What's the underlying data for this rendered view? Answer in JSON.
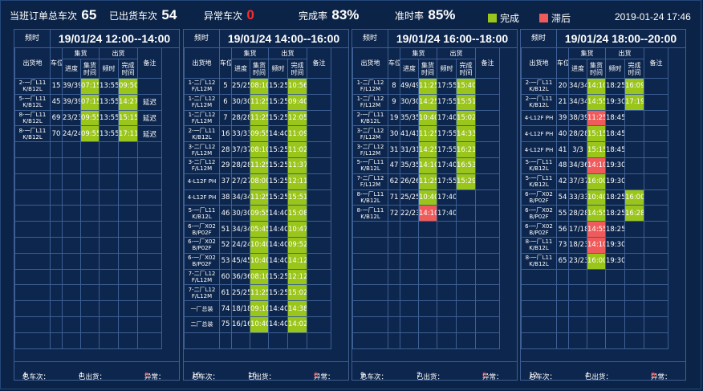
{
  "header": {
    "total_label": "当班订单总车次",
    "total_value": "65",
    "shipped_label": "已出货车次",
    "shipped_value": "54",
    "abnormal_label": "异常车次",
    "abnormal_value": "0",
    "completion_label": "完成率",
    "completion_value": "83%",
    "ontime_label": "准时率",
    "ontime_value": "85%",
    "legend_done": "完成",
    "legend_late": "滞后",
    "datetime": "2019-01-24  17:46"
  },
  "colors": {
    "done": "#9ac51b",
    "late": "#ef5a5a",
    "abnormal": "#ff2a2a"
  },
  "columns": {
    "slot_label": "频时",
    "dest": "出货地",
    "bay": "车位",
    "collect": "集货",
    "ship": "出货",
    "progress": "进度",
    "collect_time": "集货时间",
    "plan": "频时",
    "done_time": "完成时间",
    "remark": "备注"
  },
  "footer_labels": {
    "total": "总车次：",
    "shipped": "已出货：",
    "abnormal": "异常："
  },
  "panels": [
    {
      "slot": "19/01/24 12:00--14:00",
      "rows": [
        {
          "dest": "2-一厂L11 K/B12L",
          "bay": "15",
          "progress": "39/39",
          "ct": "07:15",
          "ct_s": "g",
          "plan": "13:55",
          "done": "09:50",
          "done_s": "g",
          "remark": ""
        },
        {
          "dest": "5-一厂L11 K/B12L",
          "bay": "45",
          "progress": "39/39",
          "ct": "07:15",
          "ct_s": "g",
          "plan": "13:55",
          "done": "14:27",
          "done_s": "g",
          "remark": "延迟"
        },
        {
          "dest": "8-一厂L11 K/B12L",
          "bay": "69",
          "progress": "23/23",
          "ct": "09:55",
          "ct_s": "g",
          "plan": "13:55",
          "done": "15:15",
          "done_s": "g",
          "remark": "延迟"
        },
        {
          "dest": "8-一厂L11 K/B12L",
          "bay": "70",
          "progress": "24/24",
          "ct": "09:55",
          "ct_s": "g",
          "plan": "13:55",
          "done": "17:11",
          "done_s": "g",
          "remark": "延迟"
        }
      ],
      "footer": {
        "total": "4",
        "shipped": "4",
        "abnormal": "0"
      }
    },
    {
      "slot": "19/01/24 14:00--16:00",
      "rows": [
        {
          "dest": "1-二厂L12 F/L12M",
          "bay": "5",
          "progress": "25/25",
          "ct": "08:10",
          "ct_s": "g",
          "plan": "15:25",
          "done": "10:56",
          "done_s": "g",
          "remark": ""
        },
        {
          "dest": "1-二厂L12 F/L12M",
          "bay": "6",
          "progress": "30/30",
          "ct": "11:25",
          "ct_s": "g",
          "plan": "15:25",
          "done": "09:40",
          "done_s": "g",
          "remark": ""
        },
        {
          "dest": "1-二厂L12 F/L12M",
          "bay": "7",
          "progress": "28/28",
          "ct": "11:25",
          "ct_s": "g",
          "plan": "15:25",
          "done": "12:05",
          "done_s": "g",
          "remark": ""
        },
        {
          "dest": "2-一厂L11 K/B12L",
          "bay": "16",
          "progress": "33/33",
          "ct": "09:55",
          "ct_s": "g",
          "plan": "14:40",
          "done": "11:09",
          "done_s": "g",
          "remark": ""
        },
        {
          "dest": "3-二厂L12 F/L12M",
          "bay": "28",
          "progress": "37/37",
          "ct": "08:10",
          "ct_s": "g",
          "plan": "15:25",
          "done": "11:02",
          "done_s": "g",
          "remark": ""
        },
        {
          "dest": "3-二厂L12 F/L12M",
          "bay": "29",
          "progress": "28/28",
          "ct": "11:25",
          "ct_s": "g",
          "plan": "15:25",
          "done": "11:37",
          "done_s": "g",
          "remark": ""
        },
        {
          "dest": "4-L12F PH",
          "bay": "37",
          "progress": "27/27",
          "ct": "08:00",
          "ct_s": "g",
          "plan": "15:25",
          "done": "12:11",
          "done_s": "g",
          "remark": ""
        },
        {
          "dest": "4-L12F PH",
          "bay": "38",
          "progress": "34/34",
          "ct": "11:25",
          "ct_s": "g",
          "plan": "15:25",
          "done": "15:51",
          "done_s": "g",
          "remark": ""
        },
        {
          "dest": "5-一厂L11 K/B12L",
          "bay": "46",
          "progress": "30/30",
          "ct": "09:55",
          "ct_s": "g",
          "plan": "14:40",
          "done": "15:08",
          "done_s": "g",
          "remark": ""
        },
        {
          "dest": "6-一厂X02 B/P02F",
          "bay": "51",
          "progress": "34/34",
          "ct": "05:45",
          "ct_s": "g",
          "plan": "14:40",
          "done": "10:47",
          "done_s": "g",
          "remark": ""
        },
        {
          "dest": "6-一厂X02 B/P02F",
          "bay": "52",
          "progress": "24/24",
          "ct": "10:40",
          "ct_s": "g",
          "plan": "14:40",
          "done": "09:52",
          "done_s": "g",
          "remark": ""
        },
        {
          "dest": "6-一厂X02 B/P02F",
          "bay": "53",
          "progress": "45/45",
          "ct": "10:40",
          "ct_s": "g",
          "plan": "14:40",
          "done": "14:12",
          "done_s": "g",
          "remark": ""
        },
        {
          "dest": "7-二厂L12 F/L12M",
          "bay": "60",
          "progress": "36/36",
          "ct": "08:10",
          "ct_s": "g",
          "plan": "15:25",
          "done": "12:12",
          "done_s": "g",
          "remark": ""
        },
        {
          "dest": "7-二厂L12 F/L12M",
          "bay": "61",
          "progress": "25/25",
          "ct": "11:25",
          "ct_s": "g",
          "plan": "15:25",
          "done": "15:02",
          "done_s": "g",
          "remark": ""
        },
        {
          "dest": "一厂总装",
          "bay": "74",
          "progress": "18/18",
          "ct": "09:10",
          "ct_s": "g",
          "plan": "14:40",
          "done": "14:38",
          "done_s": "g",
          "remark": ""
        },
        {
          "dest": "二厂总装",
          "bay": "75",
          "progress": "16/16",
          "ct": "10:40",
          "ct_s": "g",
          "plan": "14:40",
          "done": "14:02",
          "done_s": "g",
          "remark": ""
        }
      ],
      "footer": {
        "total": "16",
        "shipped": "16",
        "abnormal": "0"
      }
    },
    {
      "slot": "19/01/24 16:00--18:00",
      "rows": [
        {
          "dest": "1-二厂L12 F/L12M",
          "bay": "8",
          "progress": "49/49",
          "ct": "11:25",
          "ct_s": "g",
          "plan": "17:55",
          "done": "15:40",
          "done_s": "g",
          "remark": ""
        },
        {
          "dest": "1-二厂L12 F/L12M",
          "bay": "9",
          "progress": "30/30",
          "ct": "14:25",
          "ct_s": "g",
          "plan": "17:55",
          "done": "15:51",
          "done_s": "g",
          "remark": ""
        },
        {
          "dest": "2-一厂L11 K/B12L",
          "bay": "19",
          "progress": "35/35",
          "ct": "10:40",
          "ct_s": "g",
          "plan": "17:40",
          "done": "15:02",
          "done_s": "g",
          "remark": ""
        },
        {
          "dest": "3-二厂L12 F/L12M",
          "bay": "30",
          "progress": "41/41",
          "ct": "11:25",
          "ct_s": "g",
          "plan": "17:55",
          "done": "14:33",
          "done_s": "g",
          "remark": ""
        },
        {
          "dest": "3-二厂L12 F/L12M",
          "bay": "31",
          "progress": "31/31",
          "ct": "14:25",
          "ct_s": "g",
          "plan": "17:55",
          "done": "16:21",
          "done_s": "g",
          "remark": ""
        },
        {
          "dest": "5-一厂L11 K/B12L",
          "bay": "47",
          "progress": "35/35",
          "ct": "14:10",
          "ct_s": "g",
          "plan": "17:40",
          "done": "16:53",
          "done_s": "g",
          "remark": ""
        },
        {
          "dest": "7-二厂L12 F/L12M",
          "bay": "62",
          "progress": "26/26",
          "ct": "11:25",
          "ct_s": "g",
          "plan": "17:55",
          "done": "15:29",
          "done_s": "g",
          "remark": ""
        },
        {
          "dest": "8-一厂L11 K/B12L",
          "bay": "71",
          "progress": "25/25",
          "ct": "10:40",
          "ct_s": "g",
          "plan": "17:40",
          "done": "",
          "done_s": "",
          "remark": ""
        },
        {
          "dest": "8-一厂L11 K/B12L",
          "bay": "72",
          "progress": "22/23",
          "ct": "14:10",
          "ct_s": "r",
          "plan": "17:40",
          "done": "",
          "done_s": "",
          "remark": ""
        }
      ],
      "footer": {
        "total": "9",
        "shipped": "7",
        "abnormal": "0"
      }
    },
    {
      "slot": "19/01/24 18:00--20:00",
      "rows": [
        {
          "dest": "2-一厂L11 K/B12L",
          "bay": "20",
          "progress": "34/34",
          "ct": "14:10",
          "ct_s": "g",
          "plan": "18:25",
          "done": "16:09",
          "done_s": "g",
          "remark": ""
        },
        {
          "dest": "2-一厂L11 K/B12L",
          "bay": "21",
          "progress": "34/34",
          "ct": "14:55",
          "ct_s": "g",
          "plan": "19:30",
          "done": "17:19",
          "done_s": "g",
          "remark": ""
        },
        {
          "dest": "4-L12F PH",
          "bay": "39",
          "progress": "38/39",
          "ct": "11:25",
          "ct_s": "r",
          "plan": "18:45",
          "done": "",
          "done_s": "",
          "remark": ""
        },
        {
          "dest": "4-L12F PH",
          "bay": "40",
          "progress": "28/28",
          "ct": "15:15",
          "ct_s": "g",
          "plan": "18:45",
          "done": "",
          "done_s": "",
          "remark": ""
        },
        {
          "dest": "4-L12F PH",
          "bay": "41",
          "progress": "3/3",
          "ct": "15:15",
          "ct_s": "g",
          "plan": "18:45",
          "done": "",
          "done_s": "",
          "remark": ""
        },
        {
          "dest": "5-一厂L11 K/B12L",
          "bay": "48",
          "progress": "34/36",
          "ct": "14:10",
          "ct_s": "r",
          "plan": "19:30",
          "done": "",
          "done_s": "",
          "remark": ""
        },
        {
          "dest": "5-一厂L11 K/B12L",
          "bay": "42",
          "progress": "37/37",
          "ct": "16:00",
          "ct_s": "g",
          "plan": "19:30",
          "done": "",
          "done_s": "",
          "remark": ""
        },
        {
          "dest": "6-一厂X02 B/P02F",
          "bay": "54",
          "progress": "33/33",
          "ct": "10:40",
          "ct_s": "g",
          "plan": "18:25",
          "done": "16:00",
          "done_s": "g",
          "remark": ""
        },
        {
          "dest": "6-一厂X02 B/P02F",
          "bay": "55",
          "progress": "28/28",
          "ct": "14:55",
          "ct_s": "g",
          "plan": "18:25",
          "done": "16:28",
          "done_s": "g",
          "remark": ""
        },
        {
          "dest": "6-一厂X02 B/P02F",
          "bay": "56",
          "progress": "17/18",
          "ct": "14:55",
          "ct_s": "r",
          "plan": "18:25",
          "done": "",
          "done_s": "",
          "remark": ""
        },
        {
          "dest": "8-一厂L11 K/B12L",
          "bay": "73",
          "progress": "18/23",
          "ct": "14:10",
          "ct_s": "r",
          "plan": "19:30",
          "done": "",
          "done_s": "",
          "remark": ""
        },
        {
          "dest": "8-一厂L11 K/B12L",
          "bay": "65",
          "progress": "23/23",
          "ct": "16:00",
          "ct_s": "g",
          "plan": "19:30",
          "done": "",
          "done_s": "",
          "remark": ""
        }
      ],
      "footer": {
        "total": "12",
        "shipped": "4",
        "abnormal": "0"
      }
    }
  ]
}
